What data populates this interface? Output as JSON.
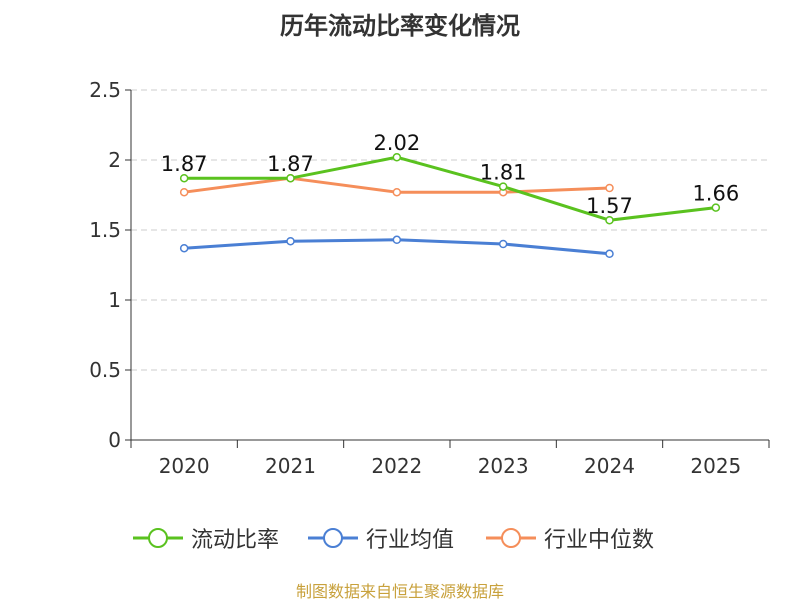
{
  "chart_data": {
    "type": "line",
    "title": "历年流动比率变化情况",
    "categories": [
      "2020",
      "2021",
      "2022",
      "2023",
      "2024",
      "2025"
    ],
    "ylim": [
      0,
      2.5
    ],
    "yticks": [
      "0",
      "0.5",
      "1",
      "1.5",
      "2",
      "2.5"
    ],
    "yticks_values": [
      0,
      0.5,
      1,
      1.5,
      2,
      2.5
    ],
    "grid": true,
    "legend_position": "bottom",
    "series": [
      {
        "name": "流动比率",
        "color": "#5ac21f",
        "values": [
          1.87,
          1.87,
          2.02,
          1.81,
          1.57,
          1.66
        ],
        "labels": [
          "1.87",
          "1.87",
          "2.02",
          "1.81",
          "1.57",
          "1.66"
        ],
        "show_labels": true
      },
      {
        "name": "行业均值",
        "color": "#4a7fd4",
        "values": [
          1.37,
          1.42,
          1.43,
          1.4,
          1.33,
          null
        ],
        "show_labels": false
      },
      {
        "name": "行业中位数",
        "color": "#f58e5a",
        "values": [
          1.77,
          1.87,
          1.77,
          1.77,
          1.8,
          null
        ],
        "show_labels": false
      }
    ]
  },
  "source_note": "制图数据来自恒生聚源数据库"
}
